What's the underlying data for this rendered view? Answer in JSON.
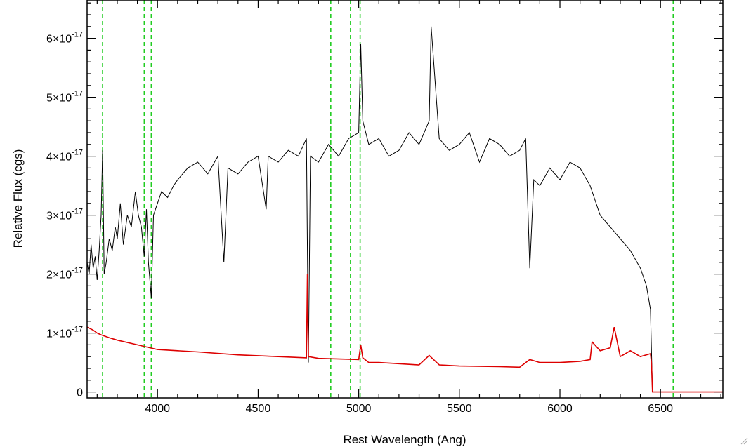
{
  "chart_data": {
    "type": "line",
    "xlabel": "Rest Wavelength (Ang)",
    "ylabel": "Relative Flux (cgs)",
    "xlim": [
      3650,
      6810
    ],
    "ylim": [
      -1e-18,
      6.65e-17
    ],
    "x_ticks": [
      4000,
      4500,
      5000,
      5500,
      6000,
      6500
    ],
    "y_ticks": [
      {
        "value": 0,
        "label": "0"
      },
      {
        "value": 1e-17,
        "mantissa": "1×10",
        "exp": "-17"
      },
      {
        "value": 2e-17,
        "mantissa": "2×10",
        "exp": "-17"
      },
      {
        "value": 3e-17,
        "mantissa": "3×10",
        "exp": "-17"
      },
      {
        "value": 4e-17,
        "mantissa": "4×10",
        "exp": "-17"
      },
      {
        "value": 5e-17,
        "mantissa": "5×10",
        "exp": "-17"
      },
      {
        "value": 6e-17,
        "mantissa": "6×10",
        "exp": "-17"
      }
    ],
    "vertical_lines": [
      3727,
      3934,
      3969,
      4861,
      4959,
      5007,
      6563
    ],
    "series": [
      {
        "color": "#000000",
        "x": [
          3650,
          3660,
          3670,
          3680,
          3690,
          3700,
          3710,
          3720,
          3727,
          3735,
          3745,
          3760,
          3775,
          3790,
          3800,
          3815,
          3830,
          3850,
          3870,
          3890,
          3905,
          3920,
          3934,
          3945,
          3955,
          3969,
          3980,
          4000,
          4020,
          4050,
          4080,
          4100,
          4150,
          4200,
          4250,
          4300,
          4330,
          4350,
          4400,
          4450,
          4500,
          4540,
          4550,
          4600,
          4650,
          4700,
          4740,
          4750,
          4760,
          4800,
          4850,
          4900,
          4950,
          5000,
          5010,
          5020,
          5050,
          5100,
          5150,
          5200,
          5250,
          5300,
          5350,
          5360,
          5400,
          5450,
          5500,
          5550,
          5600,
          5650,
          5700,
          5750,
          5800,
          5830,
          5850,
          5870,
          5900,
          5950,
          6000,
          6050,
          6100,
          6150,
          6200,
          6250,
          6300,
          6350,
          6400,
          6430,
          6450,
          6460
        ],
        "y": [
          2.2e-17,
          2e-17,
          2.5e-17,
          2.1e-17,
          2.3e-17,
          1.9e-17,
          2.4e-17,
          3e-17,
          4.1e-17,
          2e-17,
          2.2e-17,
          2.6e-17,
          2.4e-17,
          2.8e-17,
          2.6e-17,
          3.2e-17,
          2.5e-17,
          3e-17,
          2.8e-17,
          3.4e-17,
          3e-17,
          2.8e-17,
          2.3e-17,
          3.1e-17,
          2.2e-17,
          1.6e-17,
          3e-17,
          3.2e-17,
          3.4e-17,
          3.3e-17,
          3.5e-17,
          3.6e-17,
          3.8e-17,
          3.9e-17,
          3.7e-17,
          4e-17,
          2.2e-17,
          3.8e-17,
          3.7e-17,
          3.9e-17,
          4e-17,
          3.1e-17,
          4e-17,
          3.9e-17,
          4.1e-17,
          4e-17,
          4.3e-17,
          5e-18,
          4e-17,
          3.9e-17,
          4.2e-17,
          4e-17,
          4.3e-17,
          4.4e-17,
          5.9e-17,
          4.6e-17,
          4.2e-17,
          4.3e-17,
          4e-17,
          4.1e-17,
          4.4e-17,
          4.2e-17,
          4.6e-17,
          6.2e-17,
          4.3e-17,
          4.1e-17,
          4.2e-17,
          4.4e-17,
          3.9e-17,
          4.3e-17,
          4.2e-17,
          4e-17,
          4.1e-17,
          4.3e-17,
          2.1e-17,
          3.6e-17,
          3.5e-17,
          3.8e-17,
          3.6e-17,
          3.9e-17,
          3.8e-17,
          3.5e-17,
          3e-17,
          2.8e-17,
          2.6e-17,
          2.4e-17,
          2.1e-17,
          1.8e-17,
          1.4e-17,
          0
        ]
      },
      {
        "color": "#dd0000",
        "x": [
          3650,
          3680,
          3700,
          3720,
          3760,
          3800,
          3900,
          4000,
          4200,
          4400,
          4600,
          4740,
          4745,
          4750,
          4800,
          5000,
          5010,
          5020,
          5050,
          5100,
          5200,
          5300,
          5350,
          5400,
          5500,
          5700,
          5800,
          5850,
          5900,
          6000,
          6100,
          6150,
          6160,
          6200,
          6250,
          6270,
          6300,
          6350,
          6400,
          6450,
          6455,
          6460,
          6470,
          6600,
          6810
        ],
        "y": [
          1.1e-17,
          1.05e-17,
          1e-17,
          9.7e-18,
          9.2e-18,
          8.8e-18,
          8e-18,
          7.2e-18,
          6.8e-18,
          6.3e-18,
          6e-18,
          5.8e-18,
          2e-17,
          6e-18,
          5.7e-18,
          5.5e-18,
          8e-18,
          5.8e-18,
          5e-18,
          5e-18,
          4.8e-18,
          4.6e-18,
          6.2e-18,
          4.6e-18,
          4.4e-18,
          4.3e-18,
          4.2e-18,
          5.5e-18,
          5e-18,
          5e-18,
          5.2e-18,
          5.5e-18,
          8.5e-18,
          7e-18,
          7.5e-18,
          1.1e-17,
          6e-18,
          7e-18,
          6e-18,
          6.5e-18,
          5e-18,
          0,
          0,
          0,
          0
        ]
      }
    ]
  }
}
